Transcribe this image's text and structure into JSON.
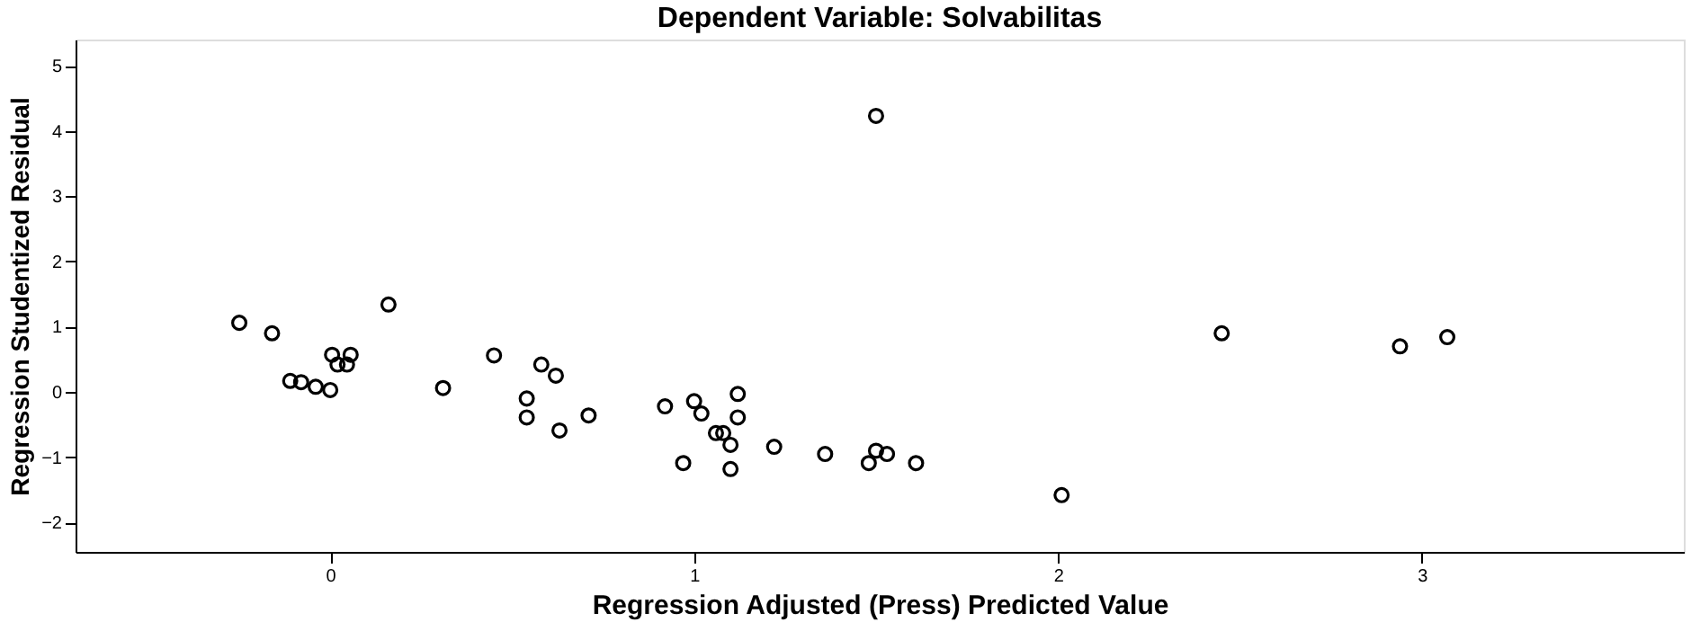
{
  "chart_data": {
    "type": "scatter",
    "title": "Dependent Variable: Solvabilitas",
    "xlabel": "Regression Adjusted (Press) Predicted Value",
    "ylabel": "Regression Studentized Residual",
    "x": [
      -0.25,
      -0.16,
      -0.11,
      -0.08,
      -0.04,
      0.0,
      0.005,
      0.056,
      0.02,
      0.046,
      0.16,
      0.31,
      0.45,
      0.54,
      0.54,
      0.58,
      0.62,
      0.63,
      0.71,
      0.92,
      1.0,
      1.02,
      1.12,
      1.12,
      1.06,
      1.08,
      1.1,
      0.97,
      1.1,
      1.22,
      1.36,
      1.5,
      1.5,
      1.53,
      1.48,
      1.61,
      2.01,
      2.45,
      2.94,
      3.07
    ],
    "series": [
      {
        "color": "#000000",
        "values": [
          1.06,
          0.9,
          0.17,
          0.15,
          0.08,
          0.03,
          0.57,
          0.57,
          0.42,
          0.42,
          1.34,
          0.06,
          0.56,
          -0.1,
          -0.39,
          0.42,
          0.25,
          -0.59,
          -0.36,
          -0.22,
          -0.14,
          -0.33,
          -0.03,
          -0.39,
          -0.63,
          -0.63,
          -0.81,
          -1.09,
          -1.18,
          -0.84,
          -0.95,
          4.23,
          -0.9,
          -0.95,
          -1.09,
          -1.09,
          -1.58,
          0.9,
          0.7,
          0.84
        ]
      }
    ],
    "xlim": [
      -0.7,
      3.72
    ],
    "ylim": [
      -2.45,
      5.4
    ],
    "xticks": [
      0,
      1,
      2,
      3
    ],
    "yticks": [
      -2,
      -1,
      0,
      1,
      2,
      3,
      4,
      5
    ],
    "grid": false,
    "marker": "circle",
    "legend": false
  }
}
